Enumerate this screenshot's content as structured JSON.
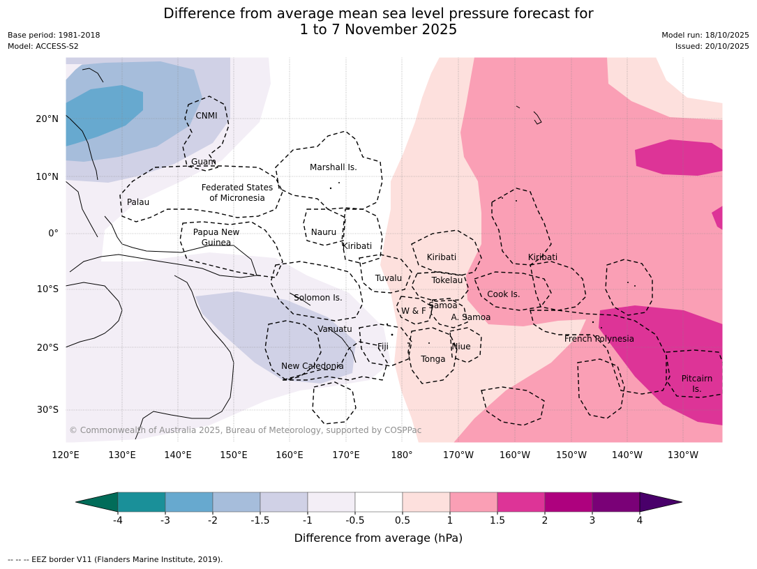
{
  "title_line1": "Difference from average mean sea level pressure forecast for",
  "title_line2": "1 to 7 November 2025",
  "meta_left": [
    "Base period: 1981-2018",
    "Model: ACCESS-S2"
  ],
  "meta_right": [
    "Model run: 18/10/2025",
    "Issued: 20/10/2025"
  ],
  "copyright": "© Commonwealth of Australia 2025, Bureau of Meteorology, supported by COSPPac",
  "lon_ticks": [
    "120°E",
    "130°E",
    "140°E",
    "150°E",
    "160°E",
    "170°E",
    "180°",
    "170°W",
    "160°W",
    "150°W",
    "140°W",
    "130°W"
  ],
  "lat_ticks": [
    "20°N",
    "10°N",
    "0°",
    "10°S",
    "20°S",
    "30°S"
  ],
  "regions": {
    "cnmi": "CNMI",
    "guam": "Guam",
    "marshall": "Marshall Is.",
    "fsm1": "Federated States",
    "fsm2": "of Micronesia",
    "palau": "Palau",
    "png1": "Papua New",
    "png2": "Guinea",
    "nauru": "Nauru",
    "kiribati_w": "Kiribati",
    "kiribati_c": "Kiribati",
    "kiribati_e": "Kiribati",
    "tuvalu": "Tuvalu",
    "tokelau": "Tokelau",
    "solomon": "Solomon Is.",
    "samoa": "Samoa",
    "wf": "W & F",
    "asamoa": "A. Samoa",
    "cook": "Cook Is.",
    "vanuatu": "Vanuatu",
    "fiji": "Fiji",
    "niue": "Niue",
    "frenchpoly": "French Polynesia",
    "tonga": "Tonga",
    "newcal": "New Caledonia",
    "pitcairn1": "Pitcairn",
    "pitcairn2": "Is."
  },
  "colorbar": {
    "ticks": [
      "-4",
      "-3",
      "-2",
      "-1.5",
      "-1",
      "-0.5",
      "0.5",
      "1",
      "1.5",
      "2",
      "3",
      "4"
    ],
    "colors": [
      "#1a9099",
      "#67a9cf",
      "#a6bddb",
      "#d0d1e6",
      "#f3eef6",
      "#ffffff",
      "#fde0dd",
      "#fa9fb5",
      "#dd3497",
      "#ae017e",
      "#7a0177"
    ],
    "under_color": "#016c59",
    "over_color": "#49006a",
    "label": "Difference from average (hPa)"
  },
  "footer": "--  --  -- EEZ border V11 (Flanders Marine Institute, 2019)."
}
